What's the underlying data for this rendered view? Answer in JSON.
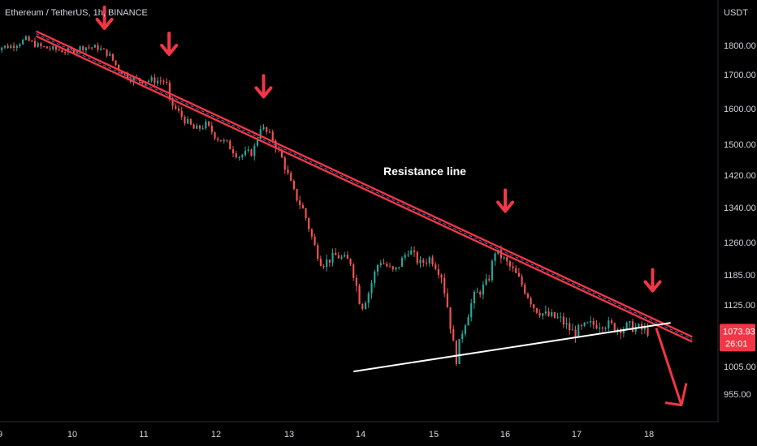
{
  "chart_data": {
    "type": "candlestick",
    "title": "Ethereum / TetherUS, 1h, BINANCE",
    "currency": "USDT",
    "y_ticks": [
      1800,
      1700,
      1600,
      1500,
      1420,
      1340,
      1260,
      1185,
      1125,
      1005,
      955
    ],
    "y_tick_labels": [
      "1800.00",
      "1700.00",
      "1600.00",
      "1500.00",
      "1420.00",
      "1340.00",
      "1260.00",
      "1185.00",
      "1125.00",
      "1005.00",
      "955.00"
    ],
    "x_ticks": [
      "9",
      "10",
      "11",
      "12",
      "13",
      "14",
      "15",
      "16",
      "17",
      "18"
    ],
    "last_price": "1073.93",
    "countdown": "26:01",
    "annotation": "Resistance line",
    "trendlines": [
      {
        "name": "resistance",
        "start": {
          "day": 9.5,
          "price": 1840
        },
        "end": {
          "day": 18.6,
          "price": 1058
        },
        "color": "#f23645"
      },
      {
        "name": "support",
        "start": {
          "day": 13.9,
          "price": 996
        },
        "end": {
          "day": 18.3,
          "price": 1090
        },
        "color": "#ffffff"
      }
    ],
    "arrows": [
      {
        "day": 10.45,
        "price": 1853
      },
      {
        "day": 11.35,
        "price": 1764
      },
      {
        "day": 12.65,
        "price": 1630
      },
      {
        "day": 16.0,
        "price": 1328
      },
      {
        "day": 18.05,
        "price": 1150
      }
    ],
    "projection": {
      "start": {
        "day": 18.1,
        "price": 1080
      },
      "end": {
        "day": 18.45,
        "price": 935
      }
    },
    "price_path": [
      {
        "day": 8.9,
        "price": 1790
      },
      {
        "day": 9.2,
        "price": 1798
      },
      {
        "day": 9.4,
        "price": 1820
      },
      {
        "day": 9.6,
        "price": 1795
      },
      {
        "day": 9.8,
        "price": 1786
      },
      {
        "day": 10.0,
        "price": 1780
      },
      {
        "day": 10.2,
        "price": 1795
      },
      {
        "day": 10.4,
        "price": 1792
      },
      {
        "day": 10.55,
        "price": 1770
      },
      {
        "day": 10.7,
        "price": 1715
      },
      {
        "day": 10.85,
        "price": 1690
      },
      {
        "day": 11.0,
        "price": 1683
      },
      {
        "day": 11.2,
        "price": 1683
      },
      {
        "day": 11.35,
        "price": 1680
      },
      {
        "day": 11.4,
        "price": 1620
      },
      {
        "day": 11.6,
        "price": 1570
      },
      {
        "day": 11.75,
        "price": 1540
      },
      {
        "day": 11.9,
        "price": 1555
      },
      {
        "day": 12.05,
        "price": 1520
      },
      {
        "day": 12.2,
        "price": 1500
      },
      {
        "day": 12.35,
        "price": 1470
      },
      {
        "day": 12.55,
        "price": 1480
      },
      {
        "day": 12.65,
        "price": 1550
      },
      {
        "day": 12.8,
        "price": 1520
      },
      {
        "day": 12.95,
        "price": 1460
      },
      {
        "day": 13.1,
        "price": 1380
      },
      {
        "day": 13.25,
        "price": 1330
      },
      {
        "day": 13.4,
        "price": 1250
      },
      {
        "day": 13.5,
        "price": 1210
      },
      {
        "day": 13.7,
        "price": 1230
      },
      {
        "day": 13.9,
        "price": 1215
      },
      {
        "day": 14.05,
        "price": 1120
      },
      {
        "day": 14.15,
        "price": 1150
      },
      {
        "day": 14.3,
        "price": 1220
      },
      {
        "day": 14.5,
        "price": 1190
      },
      {
        "day": 14.7,
        "price": 1245
      },
      {
        "day": 14.85,
        "price": 1210
      },
      {
        "day": 15.0,
        "price": 1225
      },
      {
        "day": 15.15,
        "price": 1185
      },
      {
        "day": 15.25,
        "price": 1110
      },
      {
        "day": 15.35,
        "price": 1015
      },
      {
        "day": 15.45,
        "price": 1080
      },
      {
        "day": 15.6,
        "price": 1140
      },
      {
        "day": 15.8,
        "price": 1170
      },
      {
        "day": 15.9,
        "price": 1240
      },
      {
        "day": 16.0,
        "price": 1225
      },
      {
        "day": 16.15,
        "price": 1195
      },
      {
        "day": 16.3,
        "price": 1160
      },
      {
        "day": 16.45,
        "price": 1120
      },
      {
        "day": 16.6,
        "price": 1105
      },
      {
        "day": 16.8,
        "price": 1098
      },
      {
        "day": 17.0,
        "price": 1070
      },
      {
        "day": 17.2,
        "price": 1085
      },
      {
        "day": 17.4,
        "price": 1090
      },
      {
        "day": 17.6,
        "price": 1080
      },
      {
        "day": 17.8,
        "price": 1083
      },
      {
        "day": 18.0,
        "price": 1074
      }
    ]
  }
}
